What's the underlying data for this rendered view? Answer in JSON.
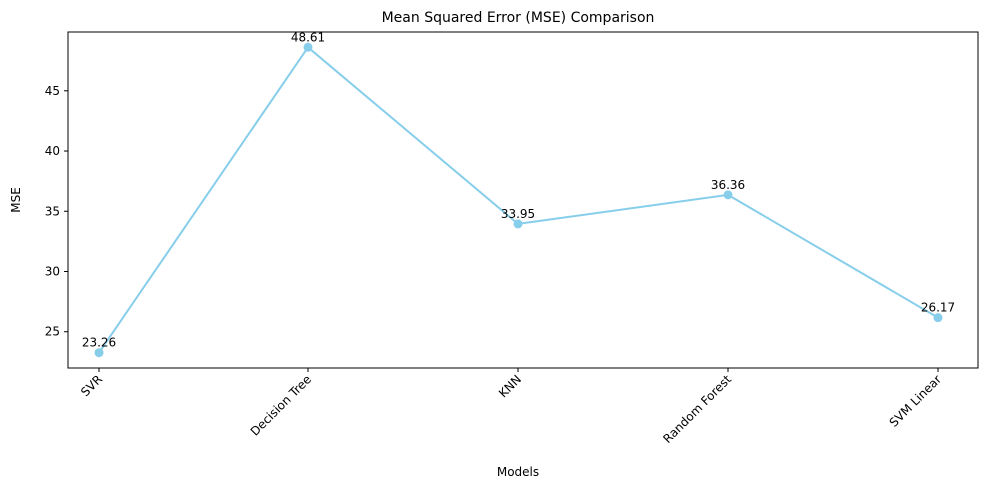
{
  "chart_data": {
    "type": "line",
    "title": "Mean Squared Error (MSE) Comparison",
    "xlabel": "Models",
    "ylabel": "MSE",
    "categories": [
      "SVR",
      "Decision Tree",
      "KNN",
      "Random Forest",
      "SVM Linear"
    ],
    "values": [
      23.26,
      48.61,
      33.95,
      36.36,
      26.17
    ],
    "data_labels": [
      "23.26",
      "48.61",
      "33.95",
      "36.36",
      "26.17"
    ],
    "yticks": [
      25,
      30,
      35,
      40,
      45
    ],
    "ytick_labels": [
      "25",
      "30",
      "35",
      "40",
      45
    ],
    "ylim": [
      21.99,
      49.88
    ],
    "grid": false,
    "line_color": "#87ceeb",
    "marker": "circle",
    "xtick_rotation_deg": 45
  }
}
